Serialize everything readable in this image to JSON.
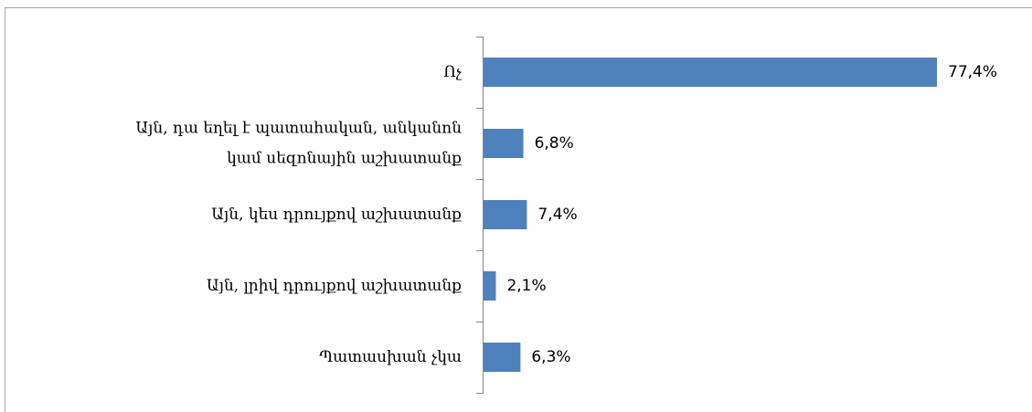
{
  "chart_data": {
    "type": "bar",
    "orientation": "horizontal",
    "categories": [
      "Ոչ",
      "Այն, դա եղել է պատահական, անկանոն\nկամ սեզոնային աշխատանք",
      "Այն, կես դրույքով աշխատանք",
      "Այն, լրիվ դրույքով աշխատանք",
      "Պատասխան չկա"
    ],
    "values": [
      77.4,
      6.8,
      7.4,
      2.1,
      6.3
    ],
    "value_labels": [
      "77,4%",
      "6,8%",
      "7,4%",
      "2,1%",
      "6,3%"
    ],
    "color": "#4f81bd"
  }
}
